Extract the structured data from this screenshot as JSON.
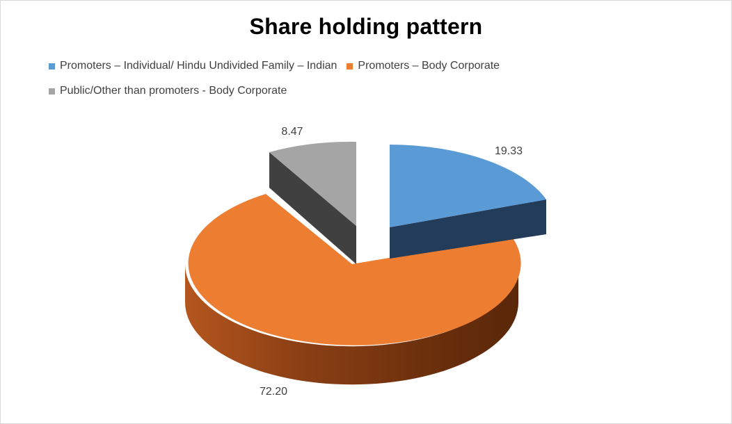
{
  "chart_data": {
    "type": "pie",
    "title": "Share holding pattern",
    "legend_position": "top",
    "exploded": true,
    "three_d": true,
    "slices": [
      {
        "label": "Promoters – Individual/ Hindu Undivided Family – Indian",
        "value": 19.33,
        "value_label": "19.33",
        "color": "#5b9bd5"
      },
      {
        "label": "Promoters – Body Corporate",
        "value": 72.2,
        "value_label": "72.20",
        "color": "#ed7d31"
      },
      {
        "label": "Public/Other than promoters - Body Corporate",
        "value": 8.47,
        "value_label": "8.47",
        "color": "#a5a5a5"
      }
    ]
  }
}
